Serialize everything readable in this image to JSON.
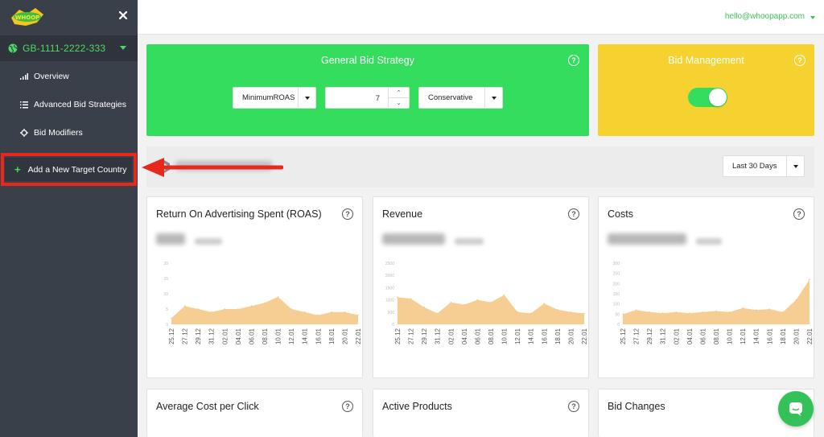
{
  "sidebar": {
    "account": "GB-1111-2222-333",
    "items": [
      {
        "label": "Overview",
        "icon": "bar-chart-icon"
      },
      {
        "label": "Advanced Bid Strategies",
        "icon": "list-icon"
      },
      {
        "label": "Bid Modifiers",
        "icon": "crosshair-icon"
      }
    ],
    "add_button": "Add a New Target Country"
  },
  "topbar": {
    "user_email": "hello@whoopapp.com"
  },
  "general_bid": {
    "title": "General Bid Strategy",
    "strategy": "MinimumROAS",
    "value": "7",
    "mode": "Conservative"
  },
  "bid_management": {
    "title": "Bid Management",
    "enabled": true
  },
  "date_range": {
    "selected": "Last 30 Days"
  },
  "cards": [
    {
      "title": "Return On Advertising Spent (ROAS)"
    },
    {
      "title": "Revenue"
    },
    {
      "title": "Costs"
    },
    {
      "title": "Average Cost per Click"
    },
    {
      "title": "Active Products"
    },
    {
      "title": "Bid Changes"
    }
  ],
  "chart_data": [
    {
      "type": "area",
      "title": "Return On Advertising Spent (ROAS)",
      "x": [
        "25.12",
        "27.12",
        "29.12",
        "31.12",
        "02.01",
        "04.01",
        "06.01",
        "08.01",
        "10.01",
        "12.01",
        "14.01",
        "16.01",
        "18.01",
        "20.01",
        "22.01"
      ],
      "y": [
        2,
        6,
        5,
        4,
        5,
        5,
        6,
        7,
        9,
        5,
        4,
        3,
        4,
        4,
        3
      ],
      "yticks": [
        "0",
        "5",
        "10",
        "15",
        "20"
      ],
      "ylim": [
        0,
        20
      ],
      "color": "#f5c580"
    },
    {
      "type": "area",
      "title": "Revenue",
      "x": [
        "25.12",
        "27.12",
        "29.12",
        "31.12",
        "02.01",
        "04.01",
        "06.01",
        "08.01",
        "10.01",
        "12.01",
        "14.01",
        "16.01",
        "18.01",
        "20.01",
        "22.01"
      ],
      "y": [
        1100,
        1050,
        700,
        450,
        900,
        800,
        1000,
        900,
        1200,
        500,
        450,
        850,
        600,
        500,
        450
      ],
      "yticks": [
        "0",
        "500",
        "1000",
        "1500",
        "2000",
        "2500"
      ],
      "ylim": [
        0,
        2500
      ],
      "color": "#f5c580"
    },
    {
      "type": "area",
      "title": "Costs",
      "x": [
        "25.12",
        "27.12",
        "29.12",
        "31.12",
        "02.01",
        "04.01",
        "06.01",
        "08.01",
        "10.01",
        "12.01",
        "14.01",
        "16.01",
        "18.01",
        "20.01",
        "22.01"
      ],
      "y": [
        50,
        70,
        60,
        55,
        60,
        55,
        60,
        65,
        60,
        80,
        70,
        75,
        60,
        120,
        220
      ],
      "yticks": [
        "0",
        "50",
        "100",
        "150",
        "200",
        "250",
        "300"
      ],
      "ylim": [
        0,
        300
      ],
      "color": "#f5c580"
    }
  ]
}
